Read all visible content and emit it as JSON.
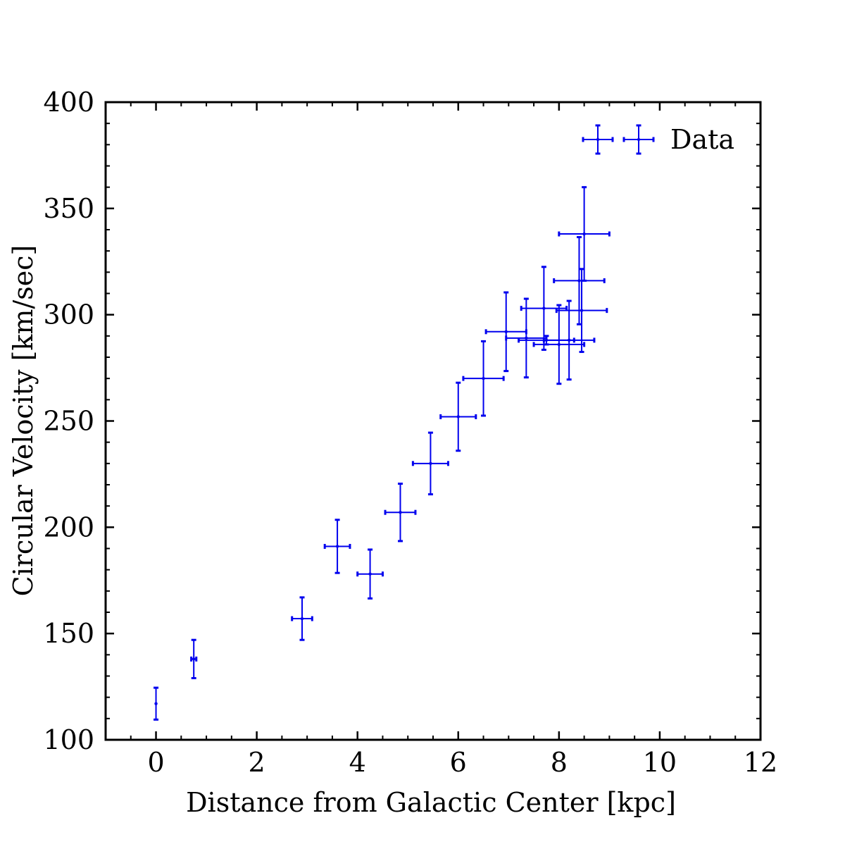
{
  "chart_data": {
    "type": "scatter",
    "title": "",
    "xlabel": "Distance from Galactic Center [kpc]",
    "ylabel": "Circular Velocity [km/sec]",
    "xlim": [
      -1,
      12
    ],
    "ylim": [
      100,
      400
    ],
    "x_ticks": [
      0,
      2,
      4,
      6,
      8,
      10,
      12
    ],
    "y_ticks": [
      100,
      150,
      200,
      250,
      300,
      350,
      400
    ],
    "x_tick_labels": [
      "0",
      "2",
      "4",
      "6",
      "8",
      "10",
      "12"
    ],
    "y_tick_labels": [
      "100",
      "150",
      "200",
      "250",
      "300",
      "350",
      "400"
    ],
    "x_minor_step": 0.5,
    "y_minor_step": 10,
    "grid": false,
    "legend": {
      "position": "top-right",
      "entries": [
        "Data"
      ]
    },
    "series": [
      {
        "name": "Data",
        "color": "#0000ee",
        "marker": "point-with-errorbars",
        "points": [
          {
            "x": 0.0,
            "y": 117,
            "xerr": 0.0,
            "yerr": 7.5
          },
          {
            "x": 0.75,
            "y": 138,
            "xerr": 0.05,
            "yerr": 9
          },
          {
            "x": 2.9,
            "y": 157,
            "xerr": 0.2,
            "yerr": 10
          },
          {
            "x": 3.6,
            "y": 191,
            "xerr": 0.25,
            "yerr": 12.5
          },
          {
            "x": 4.25,
            "y": 178,
            "xerr": 0.25,
            "yerr": 11.5
          },
          {
            "x": 4.85,
            "y": 207,
            "xerr": 0.3,
            "yerr": 13.5
          },
          {
            "x": 5.45,
            "y": 230,
            "xerr": 0.35,
            "yerr": 14.5
          },
          {
            "x": 6.0,
            "y": 252,
            "xerr": 0.35,
            "yerr": 16
          },
          {
            "x": 6.5,
            "y": 270,
            "xerr": 0.4,
            "yerr": 17.5
          },
          {
            "x": 6.95,
            "y": 292,
            "xerr": 0.4,
            "yerr": 18.5
          },
          {
            "x": 7.35,
            "y": 289,
            "xerr": 0.4,
            "yerr": 18.5
          },
          {
            "x": 7.7,
            "y": 303,
            "xerr": 0.45,
            "yerr": 19.5
          },
          {
            "x": 7.75,
            "y": 288,
            "xerr": 0.55,
            "yerr": 2
          },
          {
            "x": 8.0,
            "y": 286,
            "xerr": 0.5,
            "yerr": 18.5
          },
          {
            "x": 8.2,
            "y": 288,
            "xerr": 0.5,
            "yerr": 18.5
          },
          {
            "x": 8.4,
            "y": 316,
            "xerr": 0.5,
            "yerr": 20.5
          },
          {
            "x": 8.45,
            "y": 302,
            "xerr": 0.5,
            "yerr": 19.5
          },
          {
            "x": 8.5,
            "y": 338,
            "xerr": 0.5,
            "yerr": 22
          }
        ]
      }
    ]
  }
}
